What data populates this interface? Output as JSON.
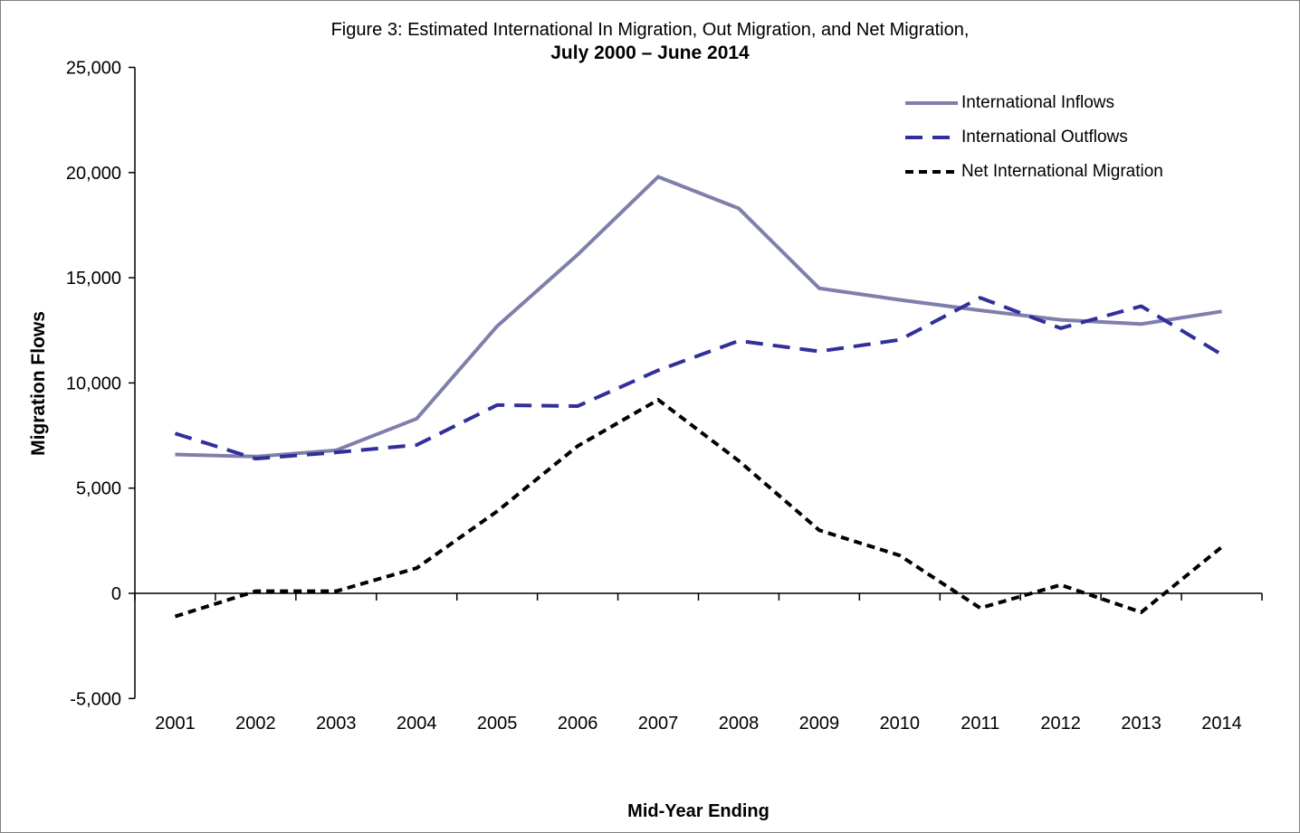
{
  "chart_data": {
    "type": "line",
    "title": "Figure 3: Estimated International In Migration, Out Migration, and Net Migration,",
    "subtitle": "July 2000 – June 2014",
    "xlabel": "Mid-Year Ending",
    "ylabel": "Migration Flows",
    "x": [
      "2001",
      "2002",
      "2003",
      "2004",
      "2005",
      "2006",
      "2007",
      "2008",
      "2009",
      "2010",
      "2011",
      "2012",
      "2013",
      "2014"
    ],
    "series": [
      {
        "name": "International Inflows",
        "style": "solid",
        "color": "#7f7fab",
        "values": [
          6600,
          6500,
          6800,
          8300,
          12700,
          16100,
          19800,
          18300,
          14500,
          13950,
          13450,
          13000,
          12800,
          13400
        ]
      },
      {
        "name": "International Outflows",
        "style": "dashed-long",
        "color": "#30309a",
        "values": [
          7600,
          6400,
          6700,
          7050,
          8950,
          8900,
          10600,
          12000,
          11500,
          12050,
          14050,
          12600,
          13650,
          11350
        ]
      },
      {
        "name": "Net International Migration",
        "style": "dashed-short",
        "color": "#000000",
        "values": [
          -1100,
          100,
          100,
          1200,
          3900,
          7000,
          9200,
          6300,
          3000,
          1800,
          -700,
          400,
          -900,
          2200
        ]
      }
    ],
    "ylim": [
      -5000,
      25000
    ],
    "ytick_step": 5000,
    "ytick_labels": [
      "25,000",
      "20,000",
      "15,000",
      "10,000",
      "5,000",
      "0",
      "-5,000"
    ],
    "grid": false,
    "legend_position": "top-right",
    "axis_color": "#000000"
  }
}
